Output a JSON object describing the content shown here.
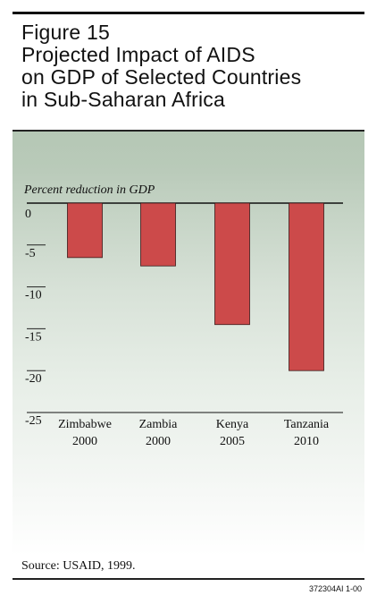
{
  "title_lines": [
    "Figure 15",
    "Projected Impact of AIDS",
    "on GDP of Selected Countries",
    "in Sub-Saharan Africa"
  ],
  "source": "Source: USAID, 1999.",
  "figure_code": "372304AI 1-00",
  "colors": {
    "bar": "#cc4a4a",
    "bar_edge": "#3a1a1a",
    "background_top": "#b5c7b5"
  },
  "chart_data": {
    "type": "bar",
    "ylabel": "Percent reduction in GDP",
    "xlabel": "",
    "ylim": [
      -25,
      0
    ],
    "yticks": [
      0,
      -5,
      -10,
      -15,
      -20,
      -25
    ],
    "ytick_labels": [
      "0",
      "-5",
      "-10",
      "-15",
      "-20",
      "-25"
    ],
    "categories": [
      {
        "name": "Zimbabwe",
        "year": "2000"
      },
      {
        "name": "Zambia",
        "year": "2000"
      },
      {
        "name": "Kenya",
        "year": "2005"
      },
      {
        "name": "Tanzania",
        "year": "2010"
      }
    ],
    "values": [
      -6.5,
      -7.5,
      -14.5,
      -20
    ]
  }
}
